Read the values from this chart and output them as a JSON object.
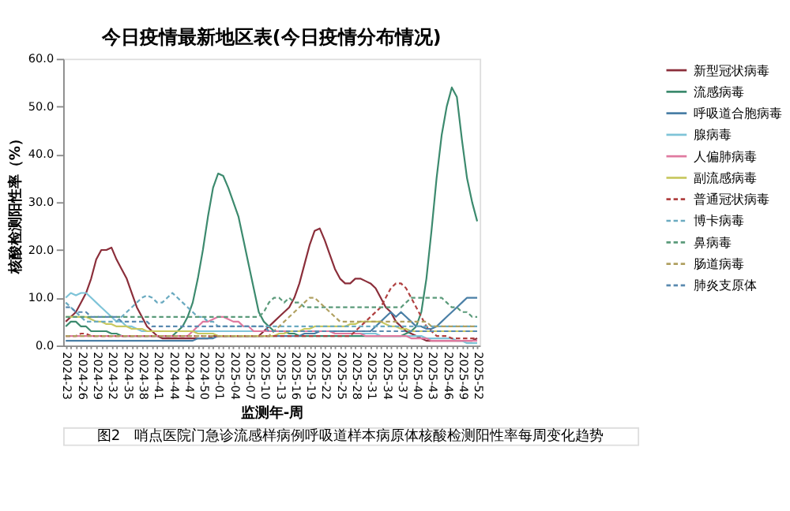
{
  "chart_data": {
    "type": "line",
    "title": "今日疫情最新地区表(今日疫情分布情况)",
    "xlabel": "监测年-周",
    "ylabel": "核酸检测阳性率（%）",
    "annotations": [
      "图2　哨点医院门急诊流感样病例呼吸道样本病原体核酸检测阳性率每周变化趋势"
    ],
    "categories": [
      "2024-23",
      null,
      null,
      "2024-26",
      null,
      null,
      "2024-29",
      null,
      null,
      "2024-32",
      null,
      null,
      "2024-35",
      null,
      null,
      "2024-38",
      null,
      null,
      "2024-41",
      null,
      null,
      "2024-44",
      null,
      null,
      "2024-47",
      null,
      null,
      "2024-50",
      null,
      null,
      "2025-01",
      null,
      null,
      "2025-04",
      null,
      null,
      "2025-07",
      null,
      null,
      "2025-10",
      null,
      null,
      "2025-13",
      null,
      null,
      "2025-16",
      null,
      null,
      "2025-19",
      null,
      null,
      "2025-22",
      null,
      null,
      "2025-25",
      null,
      null,
      "2025-28",
      null,
      null,
      "2025-31",
      null,
      null,
      "2025-34",
      null,
      null,
      "2025-37",
      null,
      null,
      "2025-40",
      null,
      null,
      "2025-43",
      null,
      null,
      "2025-46",
      null,
      null,
      "2025-49",
      null,
      null,
      "2025-52"
    ],
    "ylim": [
      0,
      60
    ],
    "yticks": [
      {
        "value": 0,
        "label": "0.0"
      },
      {
        "value": 10,
        "label": "10.0"
      },
      {
        "value": 20,
        "label": "20.0"
      },
      {
        "value": 30,
        "label": "30.0"
      },
      {
        "value": 40,
        "label": "40.0"
      },
      {
        "value": 50,
        "label": "50.0"
      },
      {
        "value": 60,
        "label": "60.0"
      }
    ],
    "grid": false,
    "legend": "right",
    "series": [
      {
        "name": "新型冠状病毒",
        "color": "#8b2e3a",
        "line_style": "solid",
        "values": [
          5,
          6,
          7,
          9,
          11,
          14,
          18,
          20,
          20,
          20.5,
          18,
          16,
          14,
          11,
          8,
          6,
          4,
          3,
          2,
          1.5,
          1.5,
          1.5,
          1.5,
          1.5,
          1.5,
          1.5,
          1.5,
          1.5,
          1.5,
          2,
          2,
          2,
          2,
          2,
          2,
          2,
          2,
          2,
          2,
          3,
          4,
          5,
          6,
          7,
          8,
          10,
          13,
          17,
          21,
          24,
          24.5,
          22,
          19,
          16,
          14,
          13,
          13,
          14,
          14,
          13.5,
          13,
          12,
          10,
          8,
          7,
          5,
          4,
          3,
          2.5,
          2,
          1.5,
          1,
          1,
          1,
          1,
          1,
          1,
          1,
          1,
          1,
          1,
          1.5
        ]
      },
      {
        "name": "流感病毒",
        "color": "#3c8a6e",
        "line_style": "solid",
        "values": [
          4,
          5,
          5,
          4,
          4,
          3,
          3,
          3,
          3,
          2.5,
          2.5,
          2,
          2,
          2,
          2,
          2,
          2,
          2,
          2,
          2,
          2,
          2,
          3,
          4,
          6,
          9,
          14,
          20,
          27,
          33,
          36,
          35.5,
          33,
          30,
          27,
          22,
          17,
          12,
          7,
          5,
          4,
          3,
          3,
          3,
          2.5,
          2.5,
          2,
          2,
          2,
          2,
          2,
          2,
          2,
          2,
          2,
          2,
          2,
          2,
          2,
          2,
          2,
          2,
          2,
          2,
          2,
          2,
          2,
          2.5,
          3,
          4,
          7,
          14,
          24,
          35,
          44,
          50,
          54,
          52,
          43,
          35,
          30,
          26
        ]
      },
      {
        "name": "呼吸道合胞病毒",
        "color": "#4a7fa6",
        "line_style": "solid",
        "values": [
          1,
          1,
          1,
          1,
          1,
          1,
          1,
          1,
          1,
          1,
          1,
          1,
          1,
          1,
          1,
          1,
          1,
          1,
          1,
          1,
          1,
          1,
          1,
          1,
          1,
          1,
          1.5,
          1.5,
          1.5,
          1.5,
          2,
          2,
          2,
          2,
          2,
          2,
          2,
          2,
          2,
          2,
          2,
          2,
          2,
          2,
          2,
          2,
          2,
          2.5,
          2.5,
          2.5,
          3,
          3,
          3,
          3,
          3,
          3,
          3,
          3,
          3,
          3,
          3,
          4,
          5,
          6,
          7,
          6,
          7,
          6,
          5,
          4,
          4,
          3.5,
          3.5,
          4,
          5,
          6,
          7,
          8,
          9,
          10,
          10,
          10
        ]
      },
      {
        "name": "腺病毒",
        "color": "#7fc4d8",
        "line_style": "solid",
        "values": [
          10,
          11,
          10.5,
          11,
          11,
          10,
          9,
          8,
          7,
          6,
          5,
          5,
          4,
          4,
          3.5,
          3,
          3,
          3,
          3,
          3,
          3,
          3,
          3,
          3,
          3,
          3,
          3,
          3,
          3,
          3,
          3,
          3,
          3,
          3,
          3,
          3,
          3,
          3,
          3,
          3,
          3,
          3,
          3,
          3,
          3,
          3,
          3,
          3,
          3,
          3,
          3,
          3,
          3,
          2.5,
          2.5,
          2.5,
          2.5,
          2.5,
          2.5,
          2.5,
          2.5,
          2.5,
          2,
          2,
          2,
          2,
          2,
          2,
          2,
          2,
          2,
          1.5,
          1.5,
          1.5,
          1.5,
          1.5,
          1.5,
          1,
          1,
          0.5,
          0.5,
          0.5
        ]
      },
      {
        "name": "人偏肺病毒",
        "color": "#e07aa0",
        "line_style": "solid",
        "values": [
          2,
          2,
          2,
          2,
          2,
          2,
          2,
          2,
          2,
          2,
          2,
          2,
          2,
          2,
          2,
          2,
          2,
          2,
          2,
          2,
          2,
          2,
          2,
          2,
          2,
          3,
          4,
          5,
          5,
          5.5,
          6,
          6,
          5.5,
          5,
          5,
          4,
          4,
          3,
          3,
          3,
          3,
          3,
          3,
          3,
          3,
          3,
          3,
          3,
          3,
          3,
          3,
          3,
          3,
          2.5,
          2.5,
          2.5,
          2.5,
          2.5,
          2.5,
          2,
          2,
          2,
          2,
          2,
          2,
          2,
          2,
          2,
          1.5,
          1.5,
          1.5,
          1.5,
          1,
          1,
          1,
          1,
          1,
          1,
          1,
          1,
          1,
          1
        ]
      },
      {
        "name": "副流感病毒",
        "color": "#c8c860",
        "line_style": "solid",
        "values": [
          6,
          6,
          6,
          6,
          6,
          5.5,
          5,
          5,
          4.5,
          4.5,
          4,
          4,
          4,
          3.5,
          3.5,
          3.5,
          3,
          3,
          3,
          3,
          3,
          3,
          3,
          3,
          3,
          3,
          2.5,
          2.5,
          2.5,
          2.5,
          2,
          2,
          2,
          2,
          2,
          2,
          2,
          2,
          2,
          2,
          2,
          2,
          2.5,
          2.5,
          3,
          3,
          3,
          3.5,
          3.5,
          4,
          4,
          4,
          4,
          4,
          4,
          4,
          4.5,
          4.5,
          5,
          5,
          5,
          5,
          5,
          4.5,
          4,
          4,
          3.5,
          3.5,
          3,
          3,
          3,
          3,
          3,
          3,
          3,
          3,
          3,
          3,
          3,
          3,
          3,
          3
        ]
      },
      {
        "name": "普通冠状病毒",
        "color": "#b04040",
        "line_style": "dashed",
        "values": [
          2,
          2,
          2,
          2.5,
          2.5,
          2,
          2,
          2,
          2,
          2,
          2,
          2,
          2,
          2,
          2,
          2,
          2,
          2,
          2,
          2,
          2,
          2,
          2,
          2,
          2,
          2,
          2,
          2,
          2,
          2,
          2,
          2,
          2,
          2,
          2,
          2,
          2,
          2,
          2,
          2,
          2,
          2,
          2,
          2,
          2,
          2,
          2,
          2,
          2,
          2,
          2,
          2,
          2,
          2,
          2,
          2,
          2,
          3,
          4,
          5,
          6,
          7,
          8,
          10,
          12,
          13,
          13,
          12,
          10,
          8,
          6,
          4,
          3,
          2,
          2,
          2,
          1.5,
          1.5,
          1.5,
          1.5,
          1.5,
          1.5
        ]
      },
      {
        "name": "博卡病毒",
        "color": "#6aaac0",
        "line_style": "dashed",
        "values": [
          9,
          8,
          7,
          6,
          5,
          5,
          5,
          5,
          5,
          5,
          5,
          6,
          7,
          8,
          9,
          10,
          10.5,
          10,
          9,
          9,
          10,
          11,
          10,
          9,
          8,
          7,
          6,
          6,
          5,
          5,
          4,
          4,
          4,
          4,
          4,
          4,
          4,
          4,
          4,
          4,
          4,
          4,
          4,
          4,
          4,
          4,
          4,
          4,
          4,
          4,
          4,
          4,
          4,
          4,
          4,
          4,
          4,
          4,
          4,
          4,
          4,
          4,
          4,
          4,
          4,
          4,
          4,
          4,
          4,
          4,
          4,
          4,
          4,
          4,
          4,
          4,
          4,
          4,
          4,
          4,
          4,
          4
        ]
      },
      {
        "name": "鼻病毒",
        "color": "#5a9a7a",
        "line_style": "dashed",
        "values": [
          6,
          6,
          6,
          6,
          6,
          6,
          6,
          6,
          6,
          6,
          6,
          6,
          6,
          6,
          6,
          6,
          6,
          6,
          6,
          6,
          6,
          6,
          6,
          6,
          6,
          6,
          6,
          6,
          6,
          6,
          6,
          6,
          6,
          6,
          6,
          6,
          6,
          6,
          6,
          7,
          9,
          10,
          10,
          9,
          10,
          9,
          9,
          8,
          8,
          8,
          8,
          8,
          8,
          8,
          8,
          8,
          8,
          8,
          8,
          8,
          8,
          8,
          8,
          8,
          8,
          8,
          8,
          9,
          10,
          10,
          10,
          10,
          10,
          10,
          10,
          9,
          8,
          8,
          7,
          7,
          6,
          6
        ]
      },
      {
        "name": "肠道病毒",
        "color": "#b0a060",
        "line_style": "dashed",
        "values": [
          2,
          2,
          2,
          2,
          2,
          2,
          2,
          2,
          2,
          2,
          2,
          2,
          2,
          2,
          2,
          2,
          2,
          2,
          2,
          2,
          2,
          2,
          2,
          2,
          2,
          2,
          2,
          2,
          2,
          2,
          2,
          2,
          2,
          2,
          2,
          2,
          2,
          2,
          2,
          2,
          2,
          3,
          4,
          5,
          6,
          7,
          8,
          9,
          10,
          10,
          9,
          8,
          7,
          6,
          5,
          5,
          5,
          5,
          5,
          5,
          5,
          5,
          5,
          5,
          5,
          5,
          5,
          5,
          5,
          5,
          5,
          5,
          4,
          4,
          4,
          4,
          4,
          4,
          4,
          4,
          4,
          4
        ]
      },
      {
        "name": "肺炎支原体",
        "color": "#5a8ab0",
        "line_style": "dashed",
        "values": [
          8,
          8,
          7,
          7,
          7,
          6,
          6,
          6,
          6,
          6,
          6,
          5,
          5,
          5,
          5,
          5,
          5,
          4,
          4,
          4,
          4,
          4,
          4,
          4,
          4,
          4,
          4,
          4,
          4,
          4,
          4,
          4,
          4,
          4,
          4,
          4,
          4,
          4,
          4,
          4,
          3,
          3,
          3,
          3,
          3,
          3,
          3,
          3,
          3,
          3,
          3,
          3,
          3,
          3,
          3,
          3,
          3,
          3,
          3,
          3,
          3,
          3,
          3,
          3,
          3,
          3,
          3,
          3,
          3,
          3,
          3,
          3,
          3,
          3,
          3,
          3,
          3,
          3,
          3,
          3,
          3,
          3
        ]
      }
    ]
  }
}
